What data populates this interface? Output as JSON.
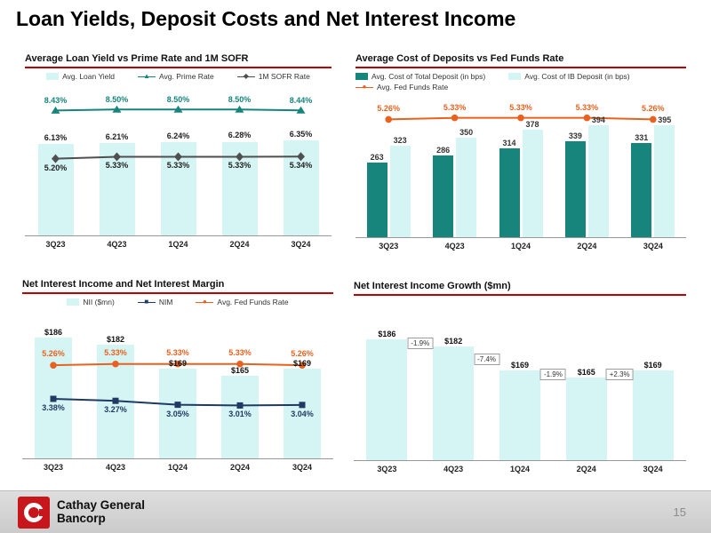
{
  "page": {
    "title": "Loan Yields, Deposit Costs and Net Interest Income",
    "page_number": "15",
    "logo": {
      "line1": "Cathay General",
      "line2": "Bancorp"
    }
  },
  "colors": {
    "accent_red": "#c00000",
    "teal": "#17857c",
    "light_cyan": "#d5f4f4",
    "orange": "#e8611f",
    "navy": "#1f3a63",
    "dark_gray": "#4f4f4f",
    "logo_red": "#c8161d"
  },
  "chart_data": [
    {
      "id": "loan_yield",
      "type": "combo",
      "title": "Average Loan Yield vs Prime Rate and 1M SOFR",
      "categories": [
        "3Q23",
        "4Q23",
        "1Q24",
        "2Q24",
        "3Q24"
      ],
      "bar_min": 0,
      "bar_max": 10,
      "line_max": 10,
      "series": [
        {
          "name": "Avg. Loan Yield",
          "kind": "bar",
          "color": "#d5f4f4",
          "values": [
            6.13,
            6.21,
            6.24,
            6.28,
            6.35
          ],
          "labels": [
            "6.13%",
            "6.21%",
            "6.24%",
            "6.28%",
            "6.35%"
          ],
          "label_color": "#1f1f1f"
        },
        {
          "name": "Avg. Prime Rate",
          "kind": "line",
          "marker": "triangle",
          "color": "#17857c",
          "values": [
            8.43,
            8.5,
            8.5,
            8.5,
            8.44
          ],
          "labels": [
            "8.43%",
            "8.50%",
            "8.50%",
            "8.50%",
            "8.44%"
          ],
          "label_color": "#17857c",
          "label_pos": "above"
        },
        {
          "name": "1M SOFR Rate",
          "kind": "line",
          "marker": "diamond",
          "color": "#4f4f4f",
          "values": [
            5.2,
            5.33,
            5.33,
            5.33,
            5.34
          ],
          "labels": [
            "5.20%",
            "5.33%",
            "5.33%",
            "5.33%",
            "5.34%"
          ],
          "label_color": "#1f1f1f",
          "label_pos": "below"
        }
      ]
    },
    {
      "id": "deposit_cost",
      "type": "combo",
      "title": "Average Cost of Deposits vs Fed Funds Rate",
      "categories": [
        "3Q23",
        "4Q23",
        "1Q24",
        "2Q24",
        "3Q24"
      ],
      "bar_min": 0,
      "bar_max": 500,
      "line_max": 6.3,
      "series": [
        {
          "name": "Avg. Cost of Total Deposit (in bps)",
          "kind": "bar",
          "color": "#17857c",
          "values": [
            263,
            286,
            314,
            339,
            331
          ],
          "labels": [
            "263",
            "286",
            "314",
            "339",
            "331"
          ],
          "label_color": "#333333"
        },
        {
          "name": "Avg. Cost of IB Deposit (in bps)",
          "kind": "bar",
          "color": "#d5f4f4",
          "values": [
            323,
            350,
            378,
            394,
            395
          ],
          "labels": [
            "323",
            "350",
            "378",
            "394",
            "395"
          ],
          "label_color": "#333333"
        },
        {
          "name": "Avg. Fed Funds Rate",
          "kind": "line",
          "marker": "circle",
          "color": "#e8611f",
          "values": [
            5.26,
            5.33,
            5.33,
            5.33,
            5.26
          ],
          "labels": [
            "5.26%",
            "5.33%",
            "5.33%",
            "5.33%",
            "5.26%"
          ],
          "label_color": "#e8611f",
          "label_pos": "above"
        }
      ]
    },
    {
      "id": "nii_nim",
      "type": "combo",
      "title": "Net Interest Income and Net Interest Margin",
      "categories": [
        "3Q23",
        "4Q23",
        "1Q24",
        "2Q24",
        "3Q24"
      ],
      "bar_min": 120,
      "bar_max": 200,
      "line_max": 8.2,
      "series": [
        {
          "name": "NII ($mn)",
          "kind": "bar",
          "color": "#d5f4f4",
          "values": [
            186,
            182,
            169,
            165,
            169
          ],
          "labels": [
            "$186",
            "$182",
            "$169",
            "$165",
            "$169"
          ],
          "label_color": "#111111"
        },
        {
          "name": "NIM",
          "kind": "line",
          "marker": "square",
          "color": "#1f3a63",
          "values": [
            3.38,
            3.27,
            3.05,
            3.01,
            3.04
          ],
          "labels": [
            "3.38%",
            "3.27%",
            "3.05%",
            "3.01%",
            "3.04%"
          ],
          "label_color": "#1f3a63",
          "label_pos": "below"
        },
        {
          "name": "Avg. Fed Funds Rate",
          "kind": "line",
          "marker": "circle",
          "color": "#e8611f",
          "values": [
            5.26,
            5.33,
            5.33,
            5.33,
            5.26
          ],
          "labels": [
            "5.26%",
            "5.33%",
            "5.33%",
            "5.33%",
            "5.26%"
          ],
          "label_color": "#e8611f",
          "label_pos": "above"
        }
      ]
    },
    {
      "id": "nii_growth",
      "type": "bar",
      "title": "Net Interest Income Growth ($mn)",
      "categories": [
        "3Q23",
        "4Q23",
        "1Q24",
        "2Q24",
        "3Q24"
      ],
      "bar_min": 120,
      "bar_max": 200,
      "bar_color": "#d5f4f4",
      "label_color": "#111111",
      "values": [
        186,
        182,
        169,
        165,
        169
      ],
      "labels": [
        "$186",
        "$182",
        "$169",
        "$165",
        "$169"
      ],
      "growth_labels": [
        "-1.9%",
        "-7.4%",
        "-1.9%",
        "+2.3%"
      ]
    }
  ]
}
